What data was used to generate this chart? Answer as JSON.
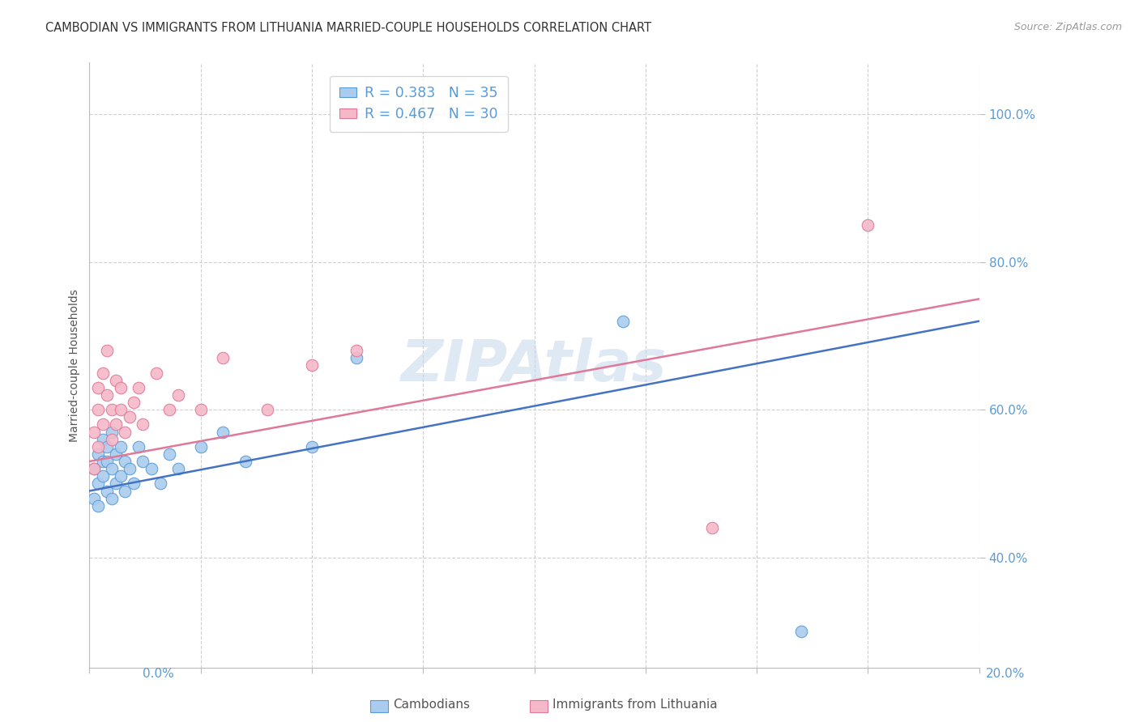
{
  "title": "CAMBODIAN VS IMMIGRANTS FROM LITHUANIA MARRIED-COUPLE HOUSEHOLDS CORRELATION CHART",
  "source": "Source: ZipAtlas.com",
  "ylabel": "Married-couple Households",
  "xmin": 0.0,
  "xmax": 0.2,
  "ymin": 25.0,
  "ymax": 107.0,
  "watermark": "ZIPAtlas",
  "color_cambodian_fill": "#aaccee",
  "color_cambodian_edge": "#5b9bd5",
  "color_lithuania_fill": "#f4b8c8",
  "color_lithuania_edge": "#e07898",
  "color_line_cambodian": "#4472c4",
  "color_line_lithuania": "#e07898",
  "color_ticks": "#5b9bd5",
  "color_grid": "#d0d0d0",
  "legend_r_cambodian": "R = 0.383",
  "legend_n_cambodian": "N = 35",
  "legend_r_lithuania": "R = 0.467",
  "legend_n_lithuania": "N = 30",
  "cambodian_x": [
    0.001,
    0.001,
    0.002,
    0.002,
    0.002,
    0.003,
    0.003,
    0.003,
    0.004,
    0.004,
    0.004,
    0.005,
    0.005,
    0.005,
    0.006,
    0.006,
    0.007,
    0.007,
    0.008,
    0.008,
    0.009,
    0.01,
    0.011,
    0.012,
    0.014,
    0.016,
    0.018,
    0.02,
    0.025,
    0.03,
    0.035,
    0.05,
    0.06,
    0.12,
    0.16
  ],
  "cambodian_y": [
    48,
    52,
    50,
    54,
    47,
    53,
    51,
    56,
    55,
    49,
    53,
    52,
    57,
    48,
    54,
    50,
    55,
    51,
    53,
    49,
    52,
    50,
    55,
    53,
    52,
    50,
    54,
    52,
    55,
    57,
    53,
    55,
    67,
    72,
    30
  ],
  "lithuania_x": [
    0.001,
    0.001,
    0.002,
    0.002,
    0.002,
    0.003,
    0.003,
    0.004,
    0.004,
    0.005,
    0.005,
    0.006,
    0.006,
    0.007,
    0.007,
    0.008,
    0.009,
    0.01,
    0.011,
    0.012,
    0.015,
    0.018,
    0.02,
    0.025,
    0.03,
    0.04,
    0.05,
    0.06,
    0.14,
    0.175
  ],
  "lithuania_y": [
    52,
    57,
    55,
    60,
    63,
    58,
    65,
    62,
    68,
    56,
    60,
    64,
    58,
    60,
    63,
    57,
    59,
    61,
    63,
    58,
    65,
    60,
    62,
    60,
    67,
    60,
    66,
    68,
    44,
    85
  ],
  "cam_line_x0": 0.0,
  "cam_line_y0": 49.0,
  "cam_line_x1": 0.2,
  "cam_line_y1": 72.0,
  "lit_line_x0": 0.0,
  "lit_line_y0": 53.0,
  "lit_line_x1": 0.2,
  "lit_line_y1": 75.0
}
